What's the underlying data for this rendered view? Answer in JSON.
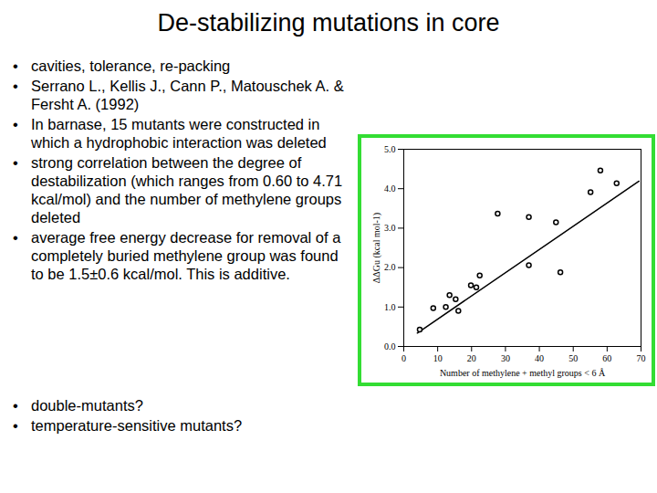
{
  "slide": {
    "title": "De-stabilizing mutations in core",
    "bullets": [
      "cavities, tolerance, re-packing",
      "Serrano L., Kellis J., Cann P., Matouschek A. & Fersht A. (1992)",
      "In barnase, 15 mutants were constructed in which a hydrophobic interaction was deleted",
      "strong correlation between the degree of destabilization (which ranges from 0.60 to 4.71 kcal/mol) and the number of methylene groups deleted",
      "average free energy decrease for removal of a completely buried methylene group was found to be 1.5±0.6 kcal/mol. This is additive."
    ],
    "questions": [
      "double-mutants?",
      "temperature-sensitive mutants?"
    ]
  },
  "chart_data": {
    "type": "scatter",
    "x_label": "Number of methylene + methyl groups < 6 Å",
    "y_label": "ΔΔGu (kcal mol-1)",
    "x": [
      4.7,
      8.7,
      12.4,
      13.5,
      15.3,
      16.1,
      19.8,
      21.4,
      22.4,
      27.7,
      36.9,
      36.9,
      44.9,
      46.2,
      55.1,
      58,
      62.8
    ],
    "values": [
      0.43,
      0.97,
      1.0,
      1.3,
      1.2,
      0.9,
      1.55,
      1.5,
      1.8,
      3.37,
      3.28,
      2.06,
      3.15,
      1.88,
      3.91,
      4.46,
      4.14
    ],
    "fit_line": {
      "x": [
        4,
        69.4
      ],
      "y": [
        0.34,
        4.19
      ]
    },
    "xlim": [
      0,
      70
    ],
    "xticks": [
      0,
      10,
      20,
      30,
      40,
      50,
      60,
      70
    ],
    "ylim": [
      0,
      5
    ],
    "yticks": [
      0,
      1,
      2,
      3,
      4,
      5
    ],
    "color": "#000000",
    "marker": "circle",
    "grid": false
  }
}
